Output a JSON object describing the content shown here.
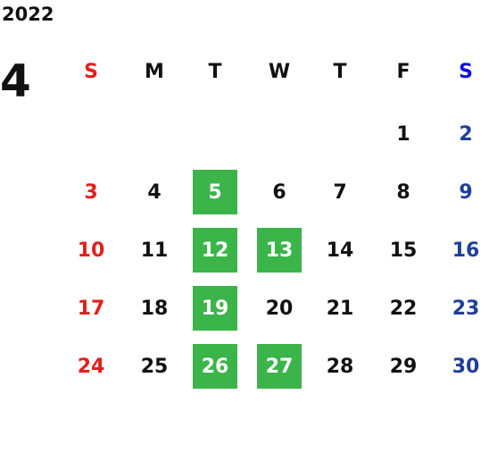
{
  "header": {
    "year": "2022",
    "month": "4"
  },
  "weekdays": [
    "S",
    "M",
    "T",
    "W",
    "T",
    "F",
    "S"
  ],
  "weeks": [
    [
      null,
      null,
      null,
      null,
      null,
      1,
      2
    ],
    [
      3,
      4,
      5,
      6,
      7,
      8,
      9
    ],
    [
      10,
      11,
      12,
      13,
      14,
      15,
      16
    ],
    [
      17,
      18,
      19,
      20,
      21,
      22,
      23
    ],
    [
      24,
      25,
      26,
      27,
      28,
      29,
      30
    ]
  ],
  "highlighted_days": [
    5,
    12,
    13,
    19,
    26,
    27
  ],
  "highlight_color": "#3bb44a",
  "sunday_color": "#e0201c",
  "saturday_header_color": "#0a10e8",
  "saturday_color": "#1f3f99"
}
